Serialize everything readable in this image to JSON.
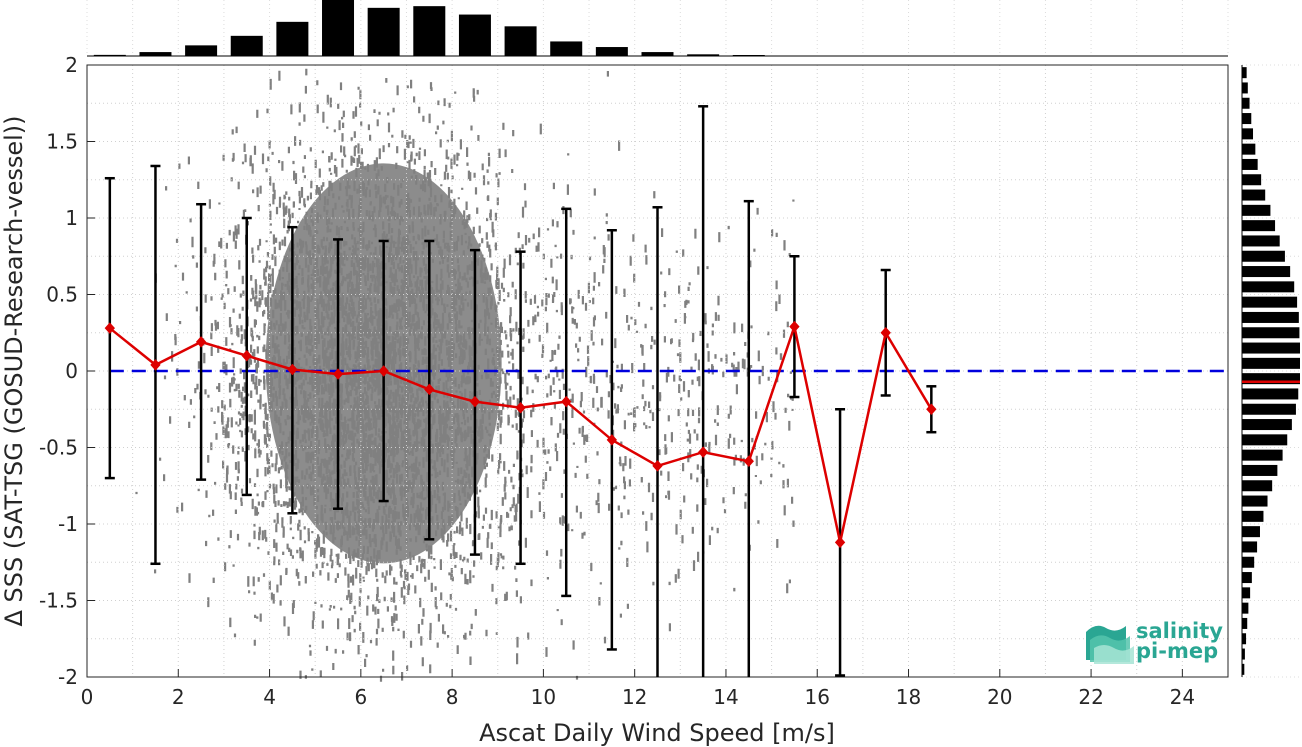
{
  "chart_data": {
    "type": "scatter",
    "xlabel": "Ascat Daily Wind Speed [m/s]",
    "ylabel": "Δ SSS (SAT-TSG (GOSUD-Research-vessel))",
    "xlim": [
      0,
      25
    ],
    "ylim": [
      -2,
      2
    ],
    "xticks": [
      "0",
      "2",
      "4",
      "6",
      "8",
      "10",
      "12",
      "14",
      "16",
      "18",
      "20",
      "22",
      "24"
    ],
    "yticks": [
      "2",
      "1.5",
      "1",
      "0.5",
      "0",
      "-0.5",
      "-1",
      "-1.5",
      "-2"
    ],
    "grid": "dotted",
    "zero_line": {
      "y": 0,
      "color": "#0000dd",
      "style": "dashed"
    },
    "colors": {
      "scatter": "#808080",
      "mean": "#dd0000",
      "errorbar": "#000000",
      "hist": "#000000"
    },
    "binned_stats": {
      "x": [
        0.5,
        1.5,
        2.5,
        3.5,
        4.5,
        5.5,
        6.5,
        7.5,
        8.5,
        9.5,
        10.5,
        11.5,
        12.5,
        13.5,
        14.5,
        15.5,
        16.5,
        17.5,
        18.5
      ],
      "mean": [
        0.28,
        0.04,
        0.19,
        0.1,
        0.01,
        -0.02,
        0.0,
        -0.12,
        -0.2,
        -0.24,
        -0.2,
        -0.45,
        -0.62,
        -0.53,
        -0.59,
        0.29,
        -1.12,
        0.25,
        -0.25
      ],
      "upper": [
        1.26,
        1.34,
        1.09,
        1.0,
        0.94,
        0.86,
        0.85,
        0.85,
        0.79,
        0.78,
        1.06,
        0.92,
        1.07,
        1.73,
        1.11,
        0.75,
        -0.25,
        0.66,
        -0.1
      ],
      "lower": [
        -0.7,
        -1.26,
        -0.71,
        -0.81,
        -0.93,
        -0.9,
        -0.85,
        -1.1,
        -1.2,
        -1.26,
        -1.47,
        -1.82,
        -2.0,
        -2.0,
        -2.0,
        -0.17,
        -1.99,
        -0.16,
        -0.4
      ]
    },
    "top_histogram": {
      "bin_centers": [
        0.5,
        1.5,
        2.5,
        3.5,
        4.5,
        5.5,
        6.5,
        7.5,
        8.5,
        9.5,
        10.5,
        11.5,
        12.5,
        13.5,
        14.5
      ],
      "relative_counts": [
        0.02,
        0.07,
        0.19,
        0.36,
        0.61,
        1.0,
        0.86,
        0.89,
        0.74,
        0.53,
        0.26,
        0.16,
        0.07,
        0.03,
        0.01
      ]
    },
    "right_histogram": {
      "bin_centers": [
        1.95,
        1.85,
        1.75,
        1.65,
        1.55,
        1.45,
        1.35,
        1.25,
        1.15,
        1.05,
        0.95,
        0.85,
        0.75,
        0.65,
        0.55,
        0.45,
        0.35,
        0.25,
        0.15,
        0.05,
        -0.05,
        -0.15,
        -0.25,
        -0.35,
        -0.45,
        -0.55,
        -0.65,
        -0.75,
        -0.85,
        -0.95,
        -1.05,
        -1.15,
        -1.25,
        -1.35,
        -1.45,
        -1.55,
        -1.65,
        -1.75,
        -1.85,
        -1.95
      ],
      "relative_counts": [
        0.08,
        0.1,
        0.13,
        0.16,
        0.19,
        0.23,
        0.27,
        0.33,
        0.4,
        0.49,
        0.57,
        0.65,
        0.74,
        0.83,
        0.9,
        0.95,
        0.98,
        0.99,
        1.0,
        1.0,
        1.0,
        0.97,
        0.93,
        0.86,
        0.78,
        0.7,
        0.61,
        0.52,
        0.44,
        0.37,
        0.31,
        0.26,
        0.21,
        0.17,
        0.14,
        0.11,
        0.09,
        0.07,
        0.05,
        0.04
      ]
    },
    "median_marker": {
      "y": -0.07,
      "color": "#dd0000"
    }
  },
  "logo": {
    "line1": "salinity",
    "line2": "pi-mep"
  }
}
